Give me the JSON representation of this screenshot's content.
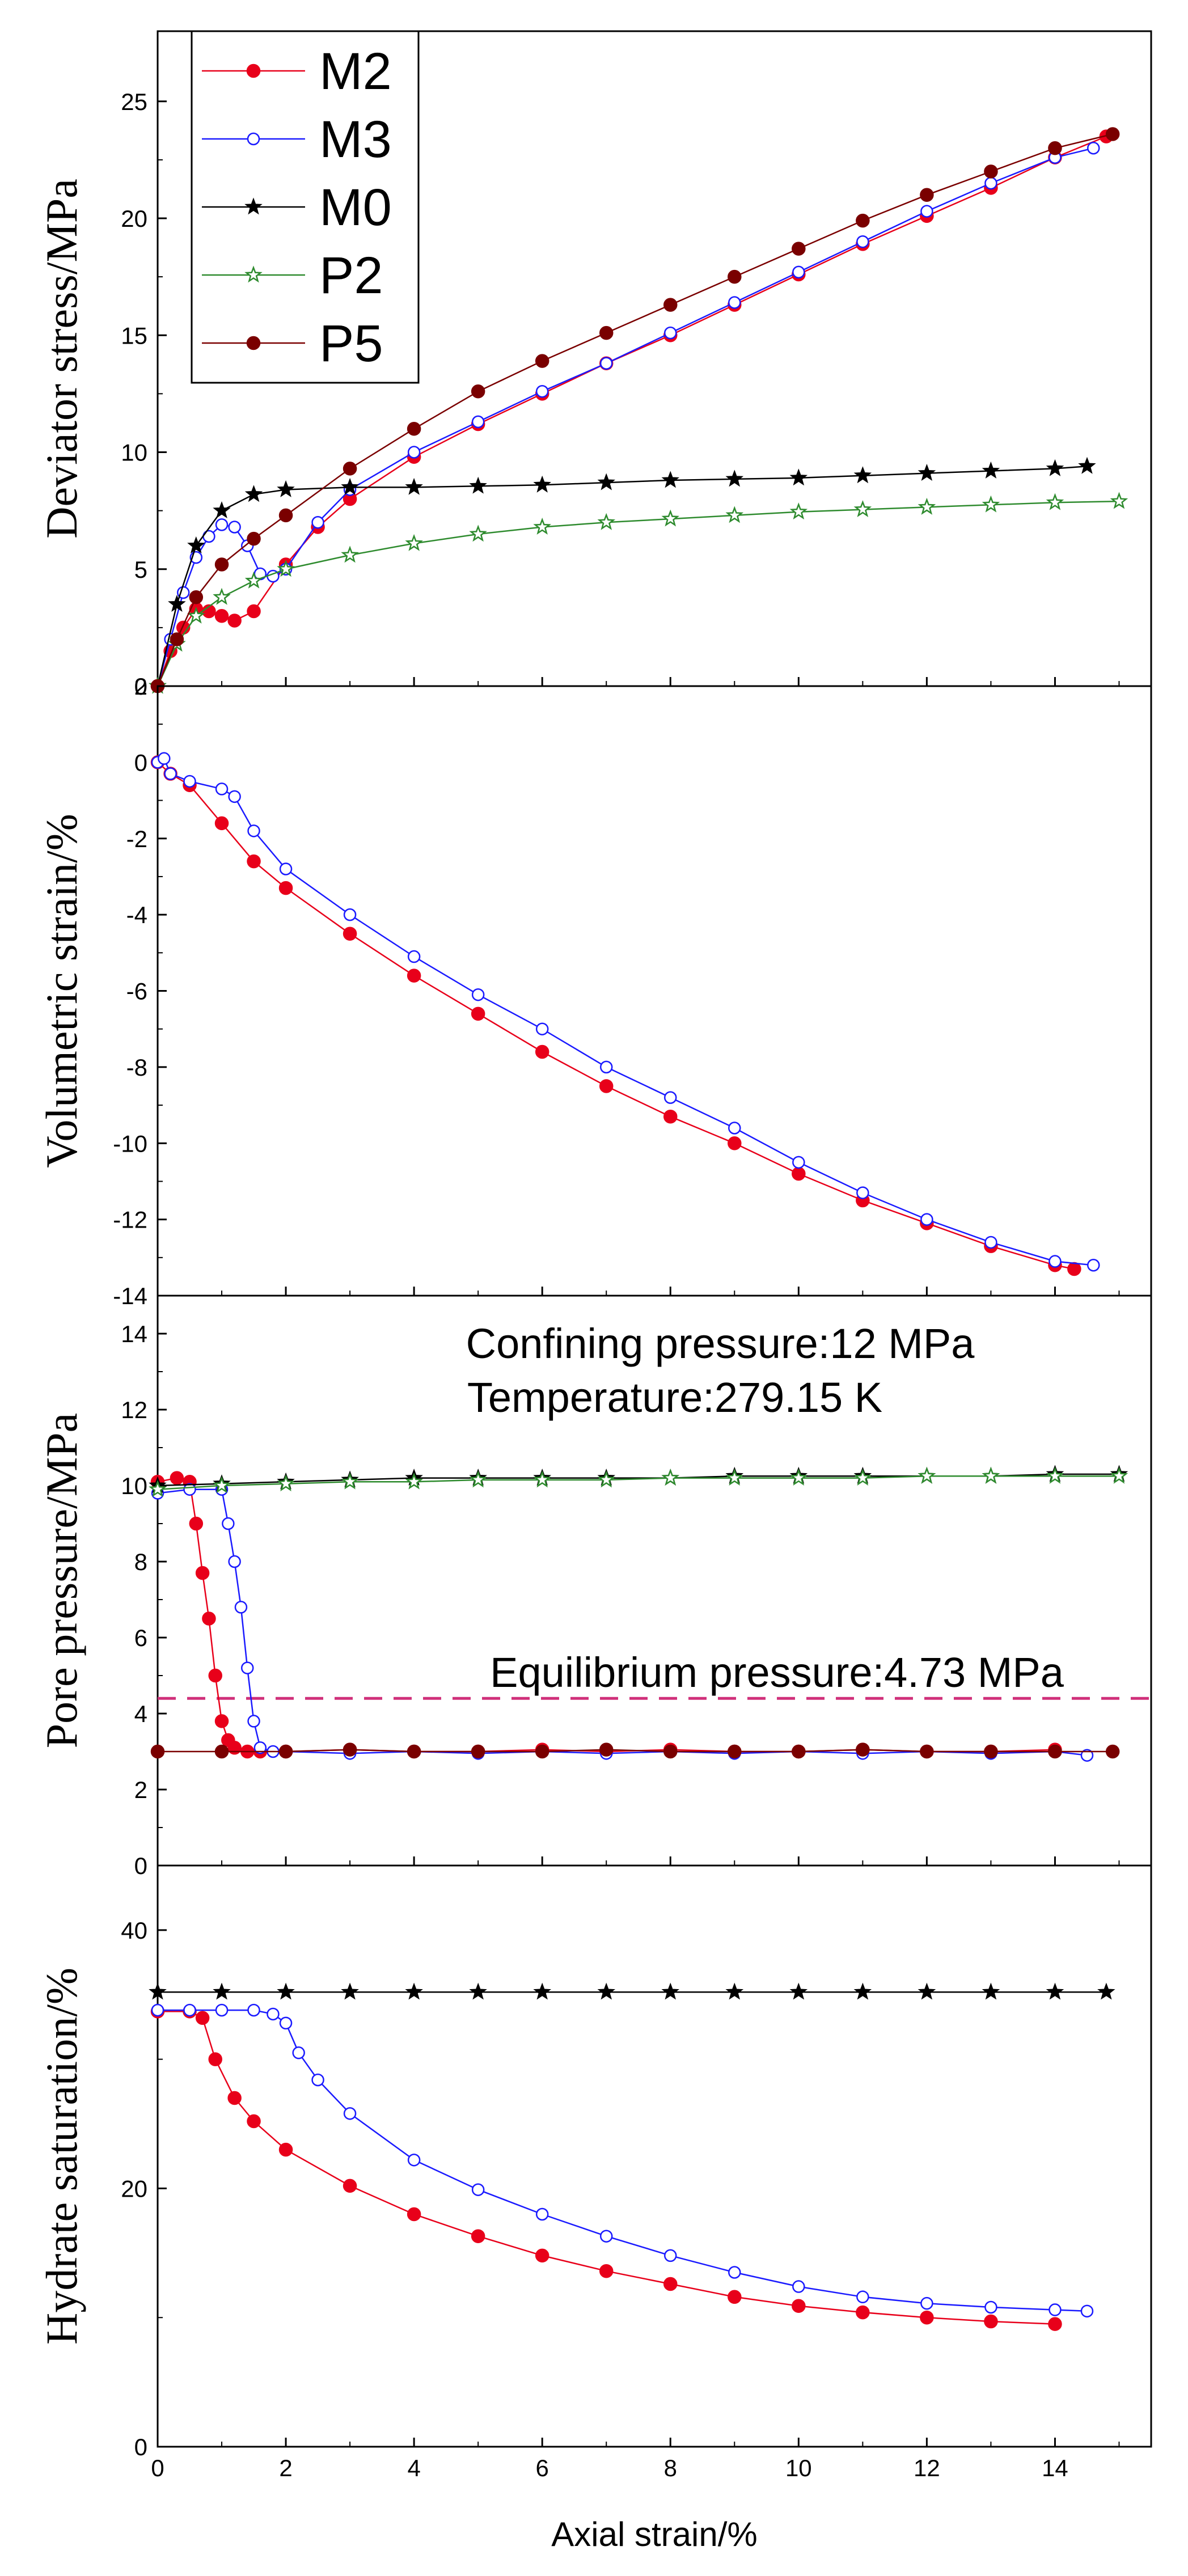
{
  "chart_data": [
    {
      "type": "line",
      "ylabel": "Deviator stress/MPa",
      "xlim": [
        0,
        15.5
      ],
      "ylim": [
        0,
        28
      ],
      "yticks": [
        0,
        5,
        10,
        15,
        20,
        25
      ],
      "legend": {
        "position": "top-left",
        "entries": [
          {
            "name": "M2",
            "color": "#e8001a",
            "marker": "filled-circle"
          },
          {
            "name": "M3",
            "color": "#1a1aff",
            "marker": "open-circle"
          },
          {
            "name": "M0",
            "color": "#000000",
            "marker": "filled-star"
          },
          {
            "name": "P2",
            "color": "#2e8b2e",
            "marker": "open-star"
          },
          {
            "name": "P5",
            "color": "#7a0000",
            "marker": "filled-circle"
          }
        ]
      },
      "series": [
        {
          "name": "M2",
          "x": [
            0,
            0.2,
            0.4,
            0.6,
            0.8,
            1.0,
            1.2,
            1.5,
            2.0,
            2.5,
            3,
            4,
            5,
            6,
            7,
            8,
            9,
            10,
            11,
            12,
            13,
            14,
            14.8
          ],
          "y": [
            0,
            1.5,
            2.5,
            3.3,
            3.2,
            3.0,
            2.8,
            3.2,
            5.2,
            6.8,
            8.0,
            9.8,
            11.2,
            12.5,
            13.8,
            15.0,
            16.3,
            17.6,
            18.9,
            20.1,
            21.3,
            22.6,
            23.5
          ]
        },
        {
          "name": "M3",
          "x": [
            0,
            0.2,
            0.4,
            0.6,
            0.8,
            1.0,
            1.2,
            1.4,
            1.6,
            1.8,
            2.0,
            2.5,
            3,
            4,
            5,
            6,
            7,
            8,
            9,
            10,
            11,
            12,
            13,
            14,
            14.6
          ],
          "y": [
            0,
            2.0,
            4.0,
            5.5,
            6.4,
            6.9,
            6.8,
            6.0,
            4.8,
            4.7,
            5.0,
            7.0,
            8.4,
            10.0,
            11.3,
            12.6,
            13.8,
            15.1,
            16.4,
            17.7,
            19.0,
            20.3,
            21.5,
            22.6,
            23.0
          ]
        },
        {
          "name": "M0",
          "x": [
            0,
            0.3,
            0.6,
            1,
            1.5,
            2,
            3,
            4,
            5,
            6,
            7,
            8,
            9,
            10,
            11,
            12,
            13,
            14,
            14.5
          ],
          "y": [
            0,
            3.5,
            6.0,
            7.5,
            8.2,
            8.4,
            8.5,
            8.5,
            8.55,
            8.6,
            8.7,
            8.8,
            8.85,
            8.9,
            9.0,
            9.1,
            9.2,
            9.3,
            9.4
          ]
        },
        {
          "name": "P2",
          "x": [
            0,
            0.3,
            0.6,
            1,
            1.5,
            2,
            3,
            4,
            5,
            6,
            7,
            8,
            9,
            10,
            11,
            12,
            13,
            14,
            15
          ],
          "y": [
            0,
            1.8,
            3.0,
            3.8,
            4.5,
            5.0,
            5.6,
            6.1,
            6.5,
            6.8,
            7.0,
            7.15,
            7.3,
            7.45,
            7.55,
            7.65,
            7.75,
            7.85,
            7.9
          ]
        },
        {
          "name": "P5",
          "x": [
            0,
            0.3,
            0.6,
            1,
            1.5,
            2,
            3,
            4,
            5,
            6,
            7,
            8,
            9,
            10,
            11,
            12,
            13,
            14,
            14.9
          ],
          "y": [
            0,
            2.0,
            3.8,
            5.2,
            6.3,
            7.3,
            9.3,
            11.0,
            12.6,
            13.9,
            15.1,
            16.3,
            17.5,
            18.7,
            19.9,
            21.0,
            22.0,
            23.0,
            23.6
          ]
        }
      ]
    },
    {
      "type": "line",
      "ylabel": "Volumetric strain/%",
      "xlim": [
        0,
        15.5
      ],
      "ylim": [
        -14,
        2
      ],
      "yticks": [
        -14,
        -12,
        -10,
        -8,
        -6,
        -4,
        -2,
        0,
        2
      ],
      "series": [
        {
          "name": "M2",
          "x": [
            0,
            0.2,
            0.5,
            1,
            1.5,
            2,
            3,
            4,
            5,
            6,
            7,
            8,
            9,
            10,
            11,
            12,
            13,
            14,
            14.3
          ],
          "y": [
            0,
            -0.3,
            -0.6,
            -1.6,
            -2.6,
            -3.3,
            -4.5,
            -5.6,
            -6.6,
            -7.6,
            -8.5,
            -9.3,
            -10.0,
            -10.8,
            -11.5,
            -12.1,
            -12.7,
            -13.2,
            -13.3
          ]
        },
        {
          "name": "M3",
          "x": [
            0,
            0.1,
            0.2,
            0.5,
            1,
            1.2,
            1.5,
            2,
            3,
            4,
            5,
            6,
            7,
            8,
            9,
            10,
            11,
            12,
            13,
            14,
            14.6
          ],
          "y": [
            0,
            0.1,
            -0.3,
            -0.5,
            -0.7,
            -0.9,
            -1.8,
            -2.8,
            -4.0,
            -5.1,
            -6.1,
            -7.0,
            -8.0,
            -8.8,
            -9.6,
            -10.5,
            -11.3,
            -12.0,
            -12.6,
            -13.1,
            -13.2
          ]
        }
      ]
    },
    {
      "type": "line",
      "ylabel": "Pore pressure/MPa",
      "xlim": [
        0,
        15.5
      ],
      "ylim": [
        0,
        15
      ],
      "yticks": [
        0,
        2,
        4,
        6,
        8,
        10,
        12,
        14
      ],
      "annotations": [
        "Confining pressure:12 MPa",
        "Temperature:279.15 K",
        "Equilibrium pressure:4.73 MPa"
      ],
      "reference_line": {
        "y": 4.4,
        "color": "#d0307a",
        "style": "dashed"
      },
      "series": [
        {
          "name": "M2",
          "x": [
            0,
            0.3,
            0.5,
            0.6,
            0.7,
            0.8,
            0.9,
            1.0,
            1.1,
            1.2,
            1.4,
            1.6,
            2,
            3,
            4,
            5,
            6,
            7,
            8,
            9,
            10,
            11,
            12,
            13,
            14
          ],
          "y": [
            10.1,
            10.2,
            10.1,
            9.0,
            7.7,
            6.5,
            5.0,
            3.8,
            3.3,
            3.1,
            3.0,
            3.0,
            3.0,
            3.05,
            3.0,
            3.0,
            3.05,
            3.0,
            3.05,
            3.0,
            3.0,
            3.05,
            3.0,
            3.0,
            3.05
          ]
        },
        {
          "name": "M3",
          "x": [
            0,
            0.5,
            1.0,
            1.1,
            1.2,
            1.3,
            1.4,
            1.5,
            1.6,
            1.8,
            2,
            3,
            4,
            5,
            6,
            7,
            8,
            9,
            10,
            11,
            12,
            13,
            14,
            14.5
          ],
          "y": [
            9.8,
            9.9,
            9.9,
            9.0,
            8.0,
            6.8,
            5.2,
            3.8,
            3.1,
            3.0,
            3.0,
            2.95,
            3.0,
            2.95,
            3.0,
            2.95,
            3.0,
            2.95,
            3.0,
            2.95,
            3.0,
            2.95,
            3.0,
            2.9
          ]
        },
        {
          "name": "M0",
          "x": [
            0,
            1,
            2,
            3,
            4,
            5,
            6,
            7,
            8,
            9,
            10,
            11,
            12,
            13,
            14,
            15
          ],
          "y": [
            10.0,
            10.05,
            10.1,
            10.15,
            10.2,
            10.2,
            10.2,
            10.2,
            10.2,
            10.25,
            10.25,
            10.25,
            10.25,
            10.25,
            10.3,
            10.3
          ]
        },
        {
          "name": "P2",
          "x": [
            0,
            1,
            2,
            3,
            4,
            5,
            6,
            7,
            8,
            9,
            10,
            11,
            12,
            13,
            14,
            15
          ],
          "y": [
            9.9,
            10.0,
            10.05,
            10.1,
            10.1,
            10.15,
            10.15,
            10.15,
            10.2,
            10.2,
            10.2,
            10.2,
            10.25,
            10.25,
            10.25,
            10.25
          ]
        },
        {
          "name": "P5",
          "x": [
            0,
            1,
            2,
            3,
            4,
            5,
            6,
            7,
            8,
            9,
            10,
            11,
            12,
            13,
            14,
            14.9
          ],
          "y": [
            3.0,
            3.0,
            3.0,
            3.05,
            3.0,
            3.0,
            3.0,
            3.05,
            3.0,
            3.0,
            3.0,
            3.05,
            3.0,
            3.0,
            3.0,
            3.0
          ]
        }
      ]
    },
    {
      "type": "line",
      "ylabel": "Hydrate saturation/%",
      "xlabel": "Axial strain/%",
      "xlim": [
        0,
        15.5
      ],
      "xticks": [
        0,
        2,
        4,
        6,
        8,
        10,
        12,
        14
      ],
      "ylim": [
        0,
        45
      ],
      "yticks": [
        0,
        20,
        40
      ],
      "series": [
        {
          "name": "M2",
          "x": [
            0,
            0.5,
            0.7,
            0.9,
            1.2,
            1.5,
            2,
            3,
            4,
            5,
            6,
            7,
            8,
            9,
            10,
            11,
            12,
            13,
            14
          ],
          "y": [
            33.7,
            33.7,
            33.2,
            30.0,
            27.0,
            25.2,
            23.0,
            20.2,
            18.0,
            16.3,
            14.8,
            13.6,
            12.6,
            11.6,
            10.9,
            10.4,
            10.0,
            9.7,
            9.5
          ]
        },
        {
          "name": "M3",
          "x": [
            0,
            0.5,
            1,
            1.5,
            1.8,
            2,
            2.2,
            2.5,
            3,
            4,
            5,
            6,
            7,
            8,
            9,
            10,
            11,
            12,
            13,
            14,
            14.5
          ],
          "y": [
            33.8,
            33.8,
            33.8,
            33.8,
            33.5,
            32.8,
            30.5,
            28.4,
            25.8,
            22.2,
            19.9,
            18.0,
            16.3,
            14.8,
            13.5,
            12.4,
            11.6,
            11.1,
            10.8,
            10.6,
            10.5
          ]
        },
        {
          "name": "M0",
          "x": [
            0,
            1,
            2,
            3,
            4,
            5,
            6,
            7,
            8,
            9,
            10,
            11,
            12,
            13,
            14,
            14.8
          ],
          "y": [
            35.2,
            35.2,
            35.2,
            35.2,
            35.2,
            35.2,
            35.2,
            35.2,
            35.2,
            35.2,
            35.2,
            35.2,
            35.2,
            35.2,
            35.2,
            35.2
          ]
        }
      ]
    }
  ]
}
